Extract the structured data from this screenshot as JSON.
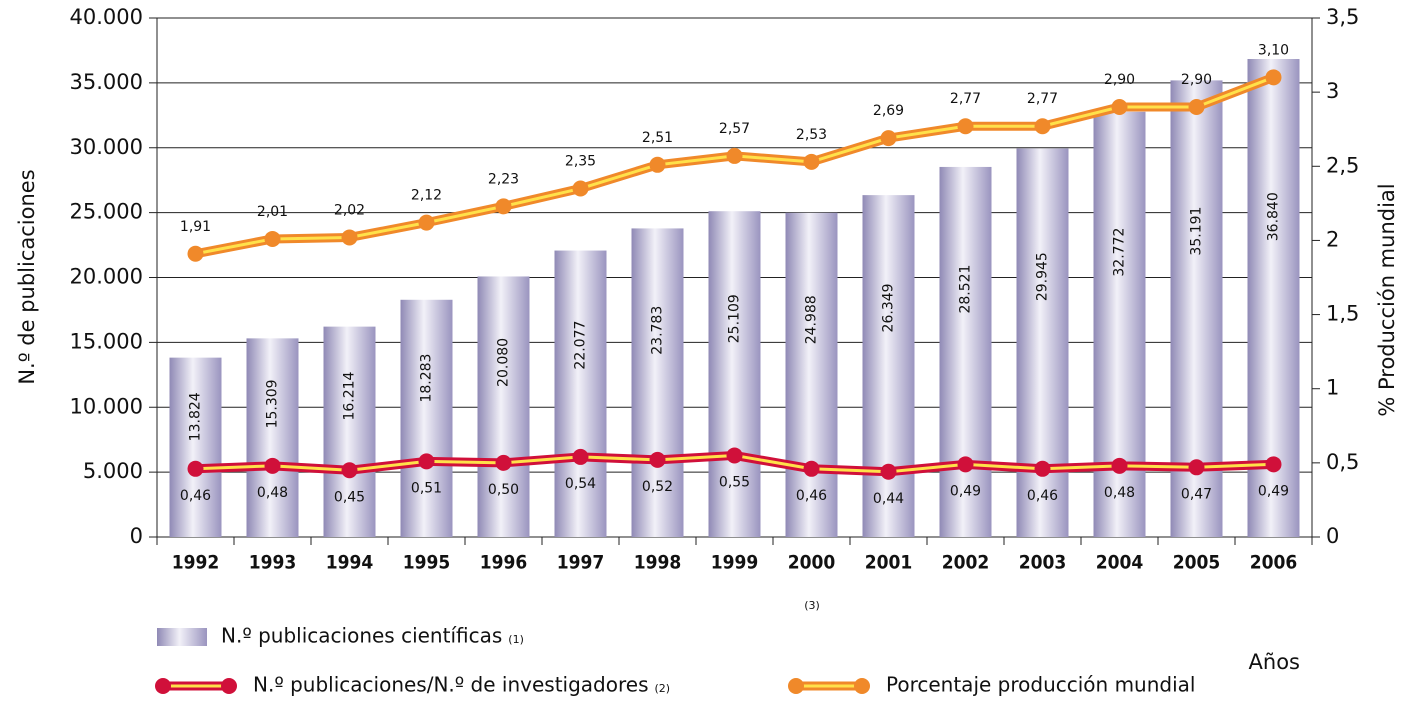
{
  "chart_data": {
    "type": "bar_line",
    "y_label": "N.º de publicaciones",
    "y2_label": "% Producción mundial",
    "x_label": "Años",
    "note": "(3)",
    "categories": [
      "1992",
      "1993",
      "1994",
      "1995",
      "1996",
      "1997",
      "1998",
      "1999",
      "2000",
      "2001",
      "2002",
      "2003",
      "2004",
      "2005",
      "2006"
    ],
    "ylim": [
      0,
      40000
    ],
    "yticks": [
      0,
      {
        "value": 5000,
        "label": "5.000"
      },
      {
        "value": 10000,
        "label": "10.000"
      },
      {
        "value": 15000,
        "label": "15.000"
      },
      {
        "value": 20000,
        "label": "20.000"
      },
      {
        "value": 25000,
        "label": "25.000"
      },
      {
        "value": 30000,
        "label": "30.000"
      },
      {
        "value": 35000,
        "label": "35.000"
      },
      {
        "value": 40000,
        "label": "40.000"
      }
    ],
    "y2lim": [
      0,
      3.5
    ],
    "y2ticks": [
      0,
      {
        "value": 0.5,
        "label": "0,5"
      },
      1,
      {
        "value": 1.5,
        "label": "1,5"
      },
      2,
      {
        "value": 2.5,
        "label": "2,5"
      },
      3,
      {
        "value": 3.5,
        "label": "3,5"
      }
    ],
    "grid": true,
    "series": [
      {
        "name": "N.º publicaciones científicas",
        "footnote": "(1)",
        "kind": "bar",
        "color": "#b5b0d0",
        "values": [
          13824,
          15309,
          16214,
          18283,
          20080,
          22077,
          23783,
          25109,
          24988,
          26349,
          28521,
          29945,
          32772,
          35191,
          36840
        ],
        "value_labels": [
          "13.824",
          "15.309",
          "16.214",
          "18.283",
          "20.080",
          "22.077",
          "23.783",
          "25.109",
          "24.988",
          "26.349",
          "28.521",
          "29.945",
          "32.772",
          "35.191",
          "36.840"
        ]
      },
      {
        "name": "N.º publicaciones/N.º de investigadores",
        "footnote": "(2)",
        "kind": "line",
        "axis": "y2",
        "color": "#d0103a",
        "values": [
          0.46,
          0.48,
          0.45,
          0.51,
          0.5,
          0.54,
          0.52,
          0.55,
          0.46,
          0.44,
          0.49,
          0.46,
          0.48,
          0.47,
          0.49
        ],
        "value_labels": [
          "0,46",
          "0,48",
          "0,45",
          "0,51",
          "0,50",
          "0,54",
          "0,52",
          "0,55",
          "0,46",
          "0,44",
          "0,49",
          "0,46",
          "0,48",
          "0,47",
          "0,49"
        ]
      },
      {
        "name": "Porcentaje producción mundial",
        "kind": "line",
        "axis": "y2",
        "color": "#f0892a",
        "values": [
          1.91,
          2.01,
          2.02,
          2.12,
          2.23,
          2.35,
          2.51,
          2.57,
          2.53,
          2.69,
          2.77,
          2.77,
          2.9,
          2.9,
          3.1
        ],
        "value_labels": [
          "1,91",
          "2,01",
          "2,02",
          "2,12",
          "2,23",
          "2,35",
          "2,51",
          "2,57",
          "2,53",
          "2,69",
          "2,77",
          "2,77",
          "2,90",
          "2,90",
          "3,10"
        ]
      }
    ]
  }
}
